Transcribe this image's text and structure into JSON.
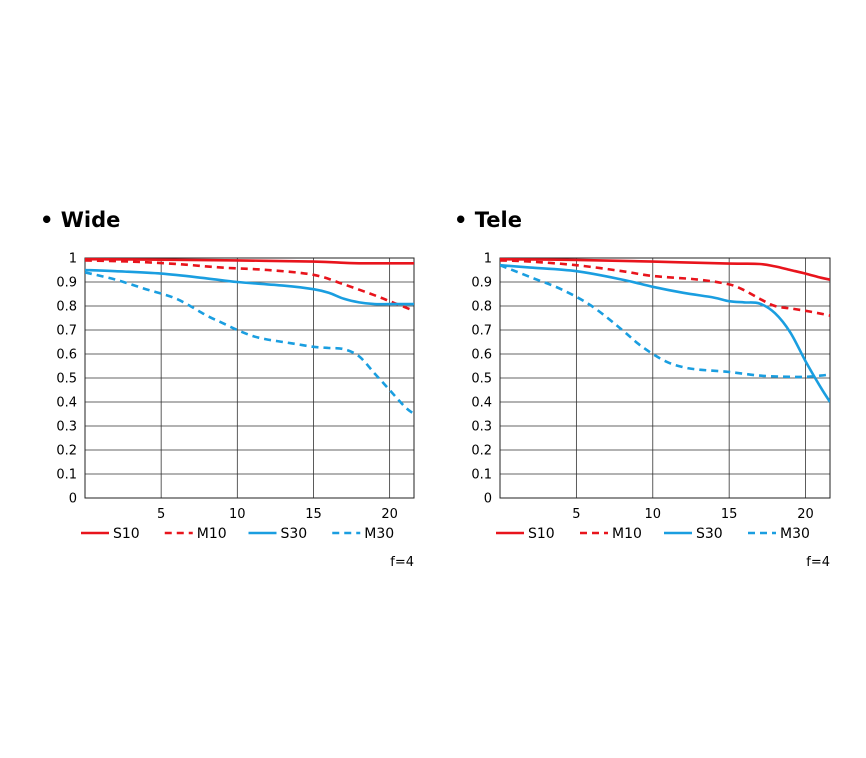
{
  "chart_data": [
    {
      "type": "line",
      "title": "• Wide",
      "xlabel": "",
      "ylabel": "",
      "xlim": [
        0,
        21.6
      ],
      "ylim": [
        0,
        1
      ],
      "xticks": [
        "5",
        "10",
        "15",
        "20"
      ],
      "yticks": [
        "0",
        "0.1",
        "0.2",
        "0.3",
        "0.4",
        "0.5",
        "0.6",
        "0.7",
        "0.8",
        "0.9",
        "1"
      ],
      "grid": true,
      "legend_position": "bottom",
      "note": "f=4",
      "series": [
        {
          "name": "S10",
          "color": "#e8141c",
          "dash": "solid",
          "x": [
            0,
            5,
            10,
            15,
            17,
            18,
            20,
            21.6
          ],
          "y": [
            0.995,
            0.993,
            0.99,
            0.985,
            0.98,
            0.978,
            0.978,
            0.978
          ]
        },
        {
          "name": "M10",
          "color": "#e8141c",
          "dash": "dashed",
          "x": [
            0,
            3,
            6,
            9,
            12,
            15,
            17,
            19,
            20,
            21,
            21.6
          ],
          "y": [
            0.99,
            0.985,
            0.975,
            0.96,
            0.95,
            0.93,
            0.89,
            0.845,
            0.82,
            0.795,
            0.78
          ]
        },
        {
          "name": "S30",
          "color": "#1a9ee0",
          "dash": "solid",
          "x": [
            0,
            2,
            5,
            8,
            10,
            13,
            15,
            16,
            17,
            18,
            19,
            20,
            21,
            21.6
          ],
          "y": [
            0.95,
            0.945,
            0.935,
            0.915,
            0.9,
            0.885,
            0.87,
            0.855,
            0.83,
            0.815,
            0.808,
            0.808,
            0.808,
            0.808
          ]
        },
        {
          "name": "M30",
          "color": "#1a9ee0",
          "dash": "dashed",
          "x": [
            0,
            2,
            4,
            6,
            8,
            9,
            10,
            11,
            12,
            13,
            14,
            15,
            16,
            17,
            18,
            19,
            20,
            21,
            21.6
          ],
          "y": [
            0.94,
            0.91,
            0.87,
            0.83,
            0.76,
            0.73,
            0.7,
            0.675,
            0.66,
            0.65,
            0.64,
            0.63,
            0.625,
            0.62,
            0.59,
            0.52,
            0.45,
            0.38,
            0.35
          ]
        }
      ]
    },
    {
      "type": "line",
      "title": "• Tele",
      "xlabel": "",
      "ylabel": "",
      "xlim": [
        0,
        21.6
      ],
      "ylim": [
        0,
        1
      ],
      "xticks": [
        "5",
        "10",
        "15",
        "20"
      ],
      "yticks": [
        "0",
        "0.1",
        "0.2",
        "0.3",
        "0.4",
        "0.5",
        "0.6",
        "0.7",
        "0.8",
        "0.9",
        "1"
      ],
      "grid": true,
      "legend_position": "bottom",
      "note": "f=4",
      "series": [
        {
          "name": "S10",
          "color": "#e8141c",
          "dash": "solid",
          "x": [
            0,
            5,
            10,
            15,
            17,
            18,
            19,
            20,
            21,
            21.6
          ],
          "y": [
            0.995,
            0.992,
            0.985,
            0.977,
            0.975,
            0.965,
            0.95,
            0.935,
            0.918,
            0.91
          ]
        },
        {
          "name": "M10",
          "color": "#e8141c",
          "dash": "dashed",
          "x": [
            0,
            2,
            5,
            8,
            10,
            13,
            15,
            16,
            17,
            18,
            19,
            20,
            21,
            21.6
          ],
          "y": [
            0.99,
            0.985,
            0.97,
            0.945,
            0.925,
            0.91,
            0.89,
            0.865,
            0.83,
            0.8,
            0.79,
            0.78,
            0.768,
            0.76
          ]
        },
        {
          "name": "S30",
          "color": "#1a9ee0",
          "dash": "solid",
          "x": [
            0,
            2,
            5,
            8,
            10,
            12,
            14,
            15,
            16,
            17,
            18,
            19,
            20,
            21,
            21.6
          ],
          "y": [
            0.97,
            0.96,
            0.945,
            0.91,
            0.88,
            0.855,
            0.835,
            0.82,
            0.815,
            0.81,
            0.77,
            0.69,
            0.57,
            0.46,
            0.4
          ]
        },
        {
          "name": "M30",
          "color": "#1a9ee0",
          "dash": "dashed",
          "x": [
            0,
            2,
            4,
            6,
            8,
            9,
            10,
            11,
            12,
            13,
            15,
            17,
            19,
            20,
            21,
            21.6
          ],
          "y": [
            0.97,
            0.92,
            0.87,
            0.8,
            0.7,
            0.645,
            0.6,
            0.565,
            0.545,
            0.535,
            0.525,
            0.51,
            0.505,
            0.505,
            0.51,
            0.515
          ]
        }
      ]
    }
  ]
}
